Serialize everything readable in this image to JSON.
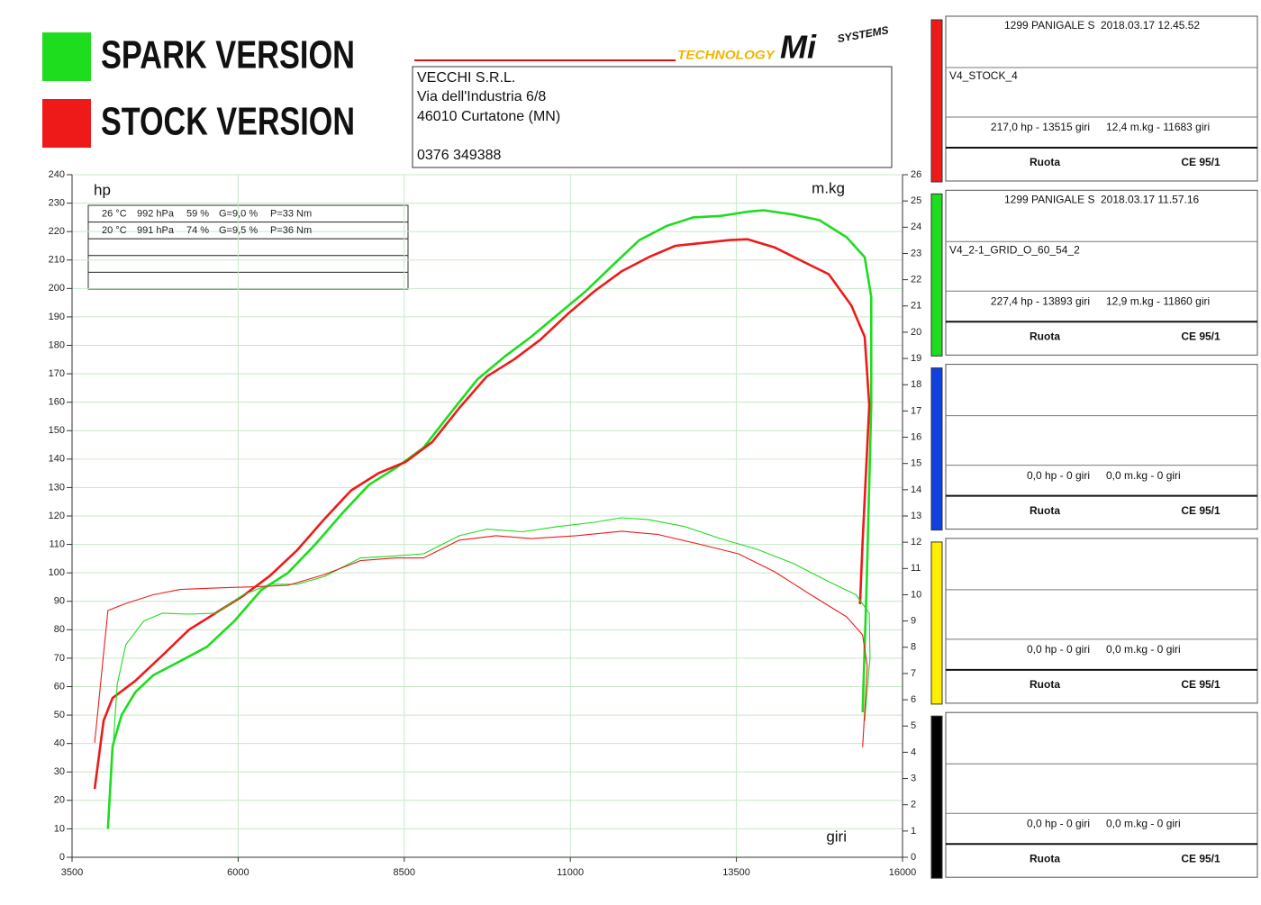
{
  "legend_heading": null,
  "chart_data": {
    "type": "line",
    "y_label": "hp",
    "y2_label": "m.kg",
    "x_label": "giri",
    "xlim": [
      3500,
      16000
    ],
    "xticks": [
      3500,
      6000,
      8500,
      11000,
      13500,
      16000
    ],
    "ylim": [
      0,
      240
    ],
    "yticks": [
      0,
      10,
      20,
      30,
      40,
      50,
      60,
      70,
      80,
      90,
      100,
      110,
      120,
      130,
      140,
      150,
      160,
      170,
      180,
      190,
      200,
      210,
      220,
      230,
      240
    ],
    "y2lim": [
      0,
      26
    ],
    "y2ticks": [
      0,
      1,
      2,
      3,
      4,
      5,
      6,
      7,
      8,
      9,
      10,
      11,
      12,
      13,
      14,
      15,
      16,
      17,
      18,
      19,
      20,
      21,
      22,
      23,
      24,
      25,
      26
    ],
    "grid": true,
    "grid_color": "#c6e8c6",
    "series": [
      {
        "name": "SPARK VERSION",
        "color": "#1edc1e",
        "line_width": 2.6,
        "x": [
          4040,
          4110,
          4245,
          4450,
          4720,
          5130,
          5530,
          5940,
          6350,
          6750,
          7160,
          7570,
          7970,
          8380,
          8790,
          9190,
          9600,
          10010,
          10410,
          10820,
          11230,
          11630,
          12040,
          12450,
          12850,
          13260,
          13670,
          13910,
          14350,
          14750,
          15160,
          15430,
          15530,
          15530,
          15460,
          15400
        ],
        "values": [
          10,
          39,
          50,
          58,
          64,
          69,
          74,
          83,
          94,
          100,
          110,
          121,
          131,
          137,
          144,
          156,
          168,
          176,
          183,
          191,
          199,
          208,
          217,
          222,
          225,
          225.5,
          227,
          227.5,
          226,
          224,
          218,
          211,
          197,
          159,
          96,
          51
        ]
      },
      {
        "name": "STOCK VERSION",
        "color": "#ee1a1a",
        "line_width": 2.6,
        "x": [
          3840,
          3975,
          4110,
          4450,
          4860,
          5260,
          5670,
          6080,
          6480,
          6890,
          7300,
          7700,
          8110,
          8520,
          8920,
          9330,
          9740,
          10150,
          10550,
          10960,
          11360,
          11770,
          12180,
          12580,
          12990,
          13400,
          13670,
          14080,
          14490,
          14890,
          15230,
          15430,
          15500,
          15400,
          15360
        ],
        "values": [
          24,
          48,
          56,
          62,
          71,
          80,
          86,
          92,
          99,
          108,
          119,
          129,
          135,
          139,
          146,
          158,
          169,
          175,
          182,
          191,
          199,
          206,
          211,
          215,
          216,
          217,
          217.3,
          214.4,
          209.6,
          205,
          194,
          183,
          159,
          111,
          89
        ]
      },
      {
        "color": "#1edc1e",
        "line_width": 1.1,
        "axis": "y2",
        "x": [
          4040,
          4180,
          4310,
          4580,
          4860,
          5260,
          5670,
          6080,
          6480,
          6890,
          7300,
          7840,
          8250,
          8790,
          9330,
          9740,
          10280,
          10820,
          11360,
          11770,
          12180,
          12720,
          13260,
          13810,
          14350,
          14890,
          15300,
          15500,
          15510,
          15430
        ],
        "values": [
          1.27,
          6.6,
          8.1,
          9.0,
          9.3,
          9.26,
          9.3,
          10.0,
          10.4,
          10.4,
          10.7,
          11.4,
          11.46,
          11.56,
          12.25,
          12.5,
          12.4,
          12.6,
          12.76,
          12.93,
          12.86,
          12.6,
          12.14,
          11.73,
          11.2,
          10.5,
          10.0,
          9.3,
          7.6,
          5.2
        ]
      },
      {
        "color": "#ee1a1a",
        "line_width": 1.1,
        "axis": "y2",
        "x": [
          3840,
          4040,
          4310,
          4720,
          5130,
          5670,
          6210,
          6750,
          7300,
          7840,
          8380,
          8790,
          9330,
          9880,
          10410,
          11090,
          11770,
          12310,
          12990,
          13530,
          14080,
          14620,
          15160,
          15400,
          15470,
          15400
        ],
        "values": [
          4.36,
          9.4,
          9.67,
          10.0,
          10.2,
          10.26,
          10.3,
          10.36,
          10.77,
          11.3,
          11.4,
          11.4,
          12.08,
          12.25,
          12.14,
          12.25,
          12.42,
          12.3,
          11.9,
          11.56,
          10.87,
          10.0,
          9.16,
          8.47,
          7.27,
          4.19
        ]
      }
    ]
  },
  "conditions": [
    [
      "26 °C",
      "992 hPa",
      "59 %",
      "G=9,0 %",
      "P=33 Nm"
    ],
    [
      "20 °C",
      "991 hPa",
      "74 %",
      "G=9,5 %",
      "P=36 Nm"
    ]
  ],
  "company": [
    "VECCHI S.R.L.",
    "Via dell'Industria 6/8",
    "46010 Curtatone (MN)",
    "0376 349388"
  ],
  "logo": [
    "TECHNOLOGY",
    "Mi",
    "SYSTEMS"
  ],
  "panels": [
    {
      "color": "#ee1a1a",
      "model": "1299 PANIGALE S",
      "timestamp": "2018.03.17 12.45.52",
      "name": "V4_STOCK_4",
      "power": "217,0 hp - 13515 giri",
      "torque": "12,4 m.kg - 11683 giri",
      "wheel": "Ruota",
      "standard": "CE 95/1"
    },
    {
      "color": "#1edc1e",
      "model": "1299 PANIGALE S",
      "timestamp": "2018.03.17 11.57.16",
      "name": "V4_2-1_GRID_O_60_54_2",
      "power": "227,4 hp - 13893 giri",
      "torque": "12,9 m.kg - 11860 giri",
      "wheel": "Ruota",
      "standard": "CE 95/1"
    },
    {
      "color": "#1040e0",
      "power": "0,0 hp - 0 giri",
      "torque": "0,0 m.kg - 0 giri",
      "wheel": "Ruota",
      "standard": "CE 95/1"
    },
    {
      "color": "#ffee00",
      "power": "0,0 hp - 0 giri",
      "torque": "0,0 m.kg - 0 giri",
      "wheel": "Ruota",
      "standard": "CE 95/1"
    },
    {
      "color": "#000000",
      "power": "0,0 hp - 0 giri",
      "torque": "0,0 m.kg - 0 giri",
      "wheel": "Ruota",
      "standard": "CE 95/1"
    }
  ]
}
